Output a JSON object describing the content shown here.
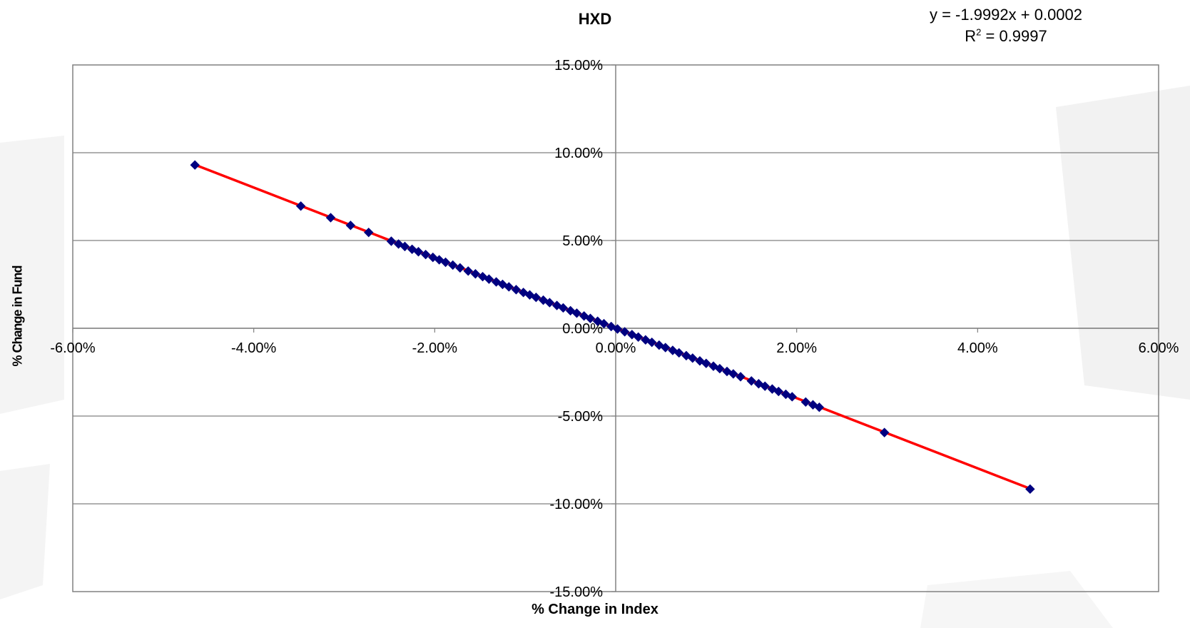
{
  "chart_data": {
    "type": "scatter",
    "title": "HXD",
    "xlabel": "% Change in Index",
    "ylabel": "% Change in Fund",
    "xlim": [
      -6,
      6
    ],
    "ylim": [
      -15,
      15
    ],
    "x_ticks": [
      "-6.00%",
      "-4.00%",
      "-2.00%",
      "0.00%",
      "2.00%",
      "4.00%",
      "6.00%"
    ],
    "y_ticks": [
      "15.00%",
      "10.00%",
      "5.00%",
      "0.00%",
      "-5.00%",
      "-10.00%",
      "-15.00%"
    ],
    "grid": "horizontal",
    "trendline": {
      "slope": -1.9992,
      "intercept": 0.0002,
      "equation_text": "y = -1.9992x + 0.0002",
      "r2_prefix": "R",
      "r2_exp": "2",
      "r2_suffix": " = 0.9997",
      "color": "#ff0000"
    },
    "point_color": "#000080",
    "series": [
      {
        "x": [
          -4.65,
          -3.48,
          -3.15,
          -2.93,
          -2.73,
          -2.48,
          -2.4,
          -2.33,
          -2.25,
          -2.18,
          -2.1,
          -2.02,
          -1.95,
          -1.88,
          -1.8,
          -1.72,
          -1.63,
          -1.55,
          -1.47,
          -1.4,
          -1.32,
          -1.25,
          -1.18,
          -1.1,
          -1.02,
          -0.95,
          -0.88,
          -0.8,
          -0.73,
          -0.65,
          -0.58,
          -0.5,
          -0.43,
          -0.35,
          -0.28,
          -0.2,
          -0.13,
          -0.05,
          0.02,
          0.1,
          0.18,
          0.25,
          0.33,
          0.4,
          0.48,
          0.55,
          0.63,
          0.7,
          0.78,
          0.85,
          0.93,
          1.0,
          1.08,
          1.15,
          1.23,
          1.3,
          1.38,
          1.5,
          1.58,
          1.65,
          1.73,
          1.8,
          1.88,
          1.95,
          2.1,
          2.18,
          2.25,
          2.97,
          4.58
        ],
        "y": [
          9.3,
          6.96,
          6.3,
          5.86,
          5.46,
          4.96,
          4.8,
          4.66,
          4.5,
          4.36,
          4.2,
          4.04,
          3.9,
          3.76,
          3.6,
          3.44,
          3.26,
          3.1,
          2.94,
          2.8,
          2.64,
          2.5,
          2.36,
          2.2,
          2.04,
          1.9,
          1.76,
          1.6,
          1.46,
          1.3,
          1.16,
          1.0,
          0.86,
          0.7,
          0.56,
          0.4,
          0.26,
          0.1,
          -0.04,
          -0.2,
          -0.36,
          -0.5,
          -0.66,
          -0.8,
          -0.96,
          -1.1,
          -1.26,
          -1.4,
          -1.56,
          -1.7,
          -1.86,
          -2.0,
          -2.16,
          -2.3,
          -2.46,
          -2.6,
          -2.76,
          -3.0,
          -3.16,
          -3.3,
          -3.46,
          -3.6,
          -3.76,
          -3.9,
          -4.2,
          -4.36,
          -4.5,
          -5.94,
          -9.16
        ]
      }
    ]
  }
}
